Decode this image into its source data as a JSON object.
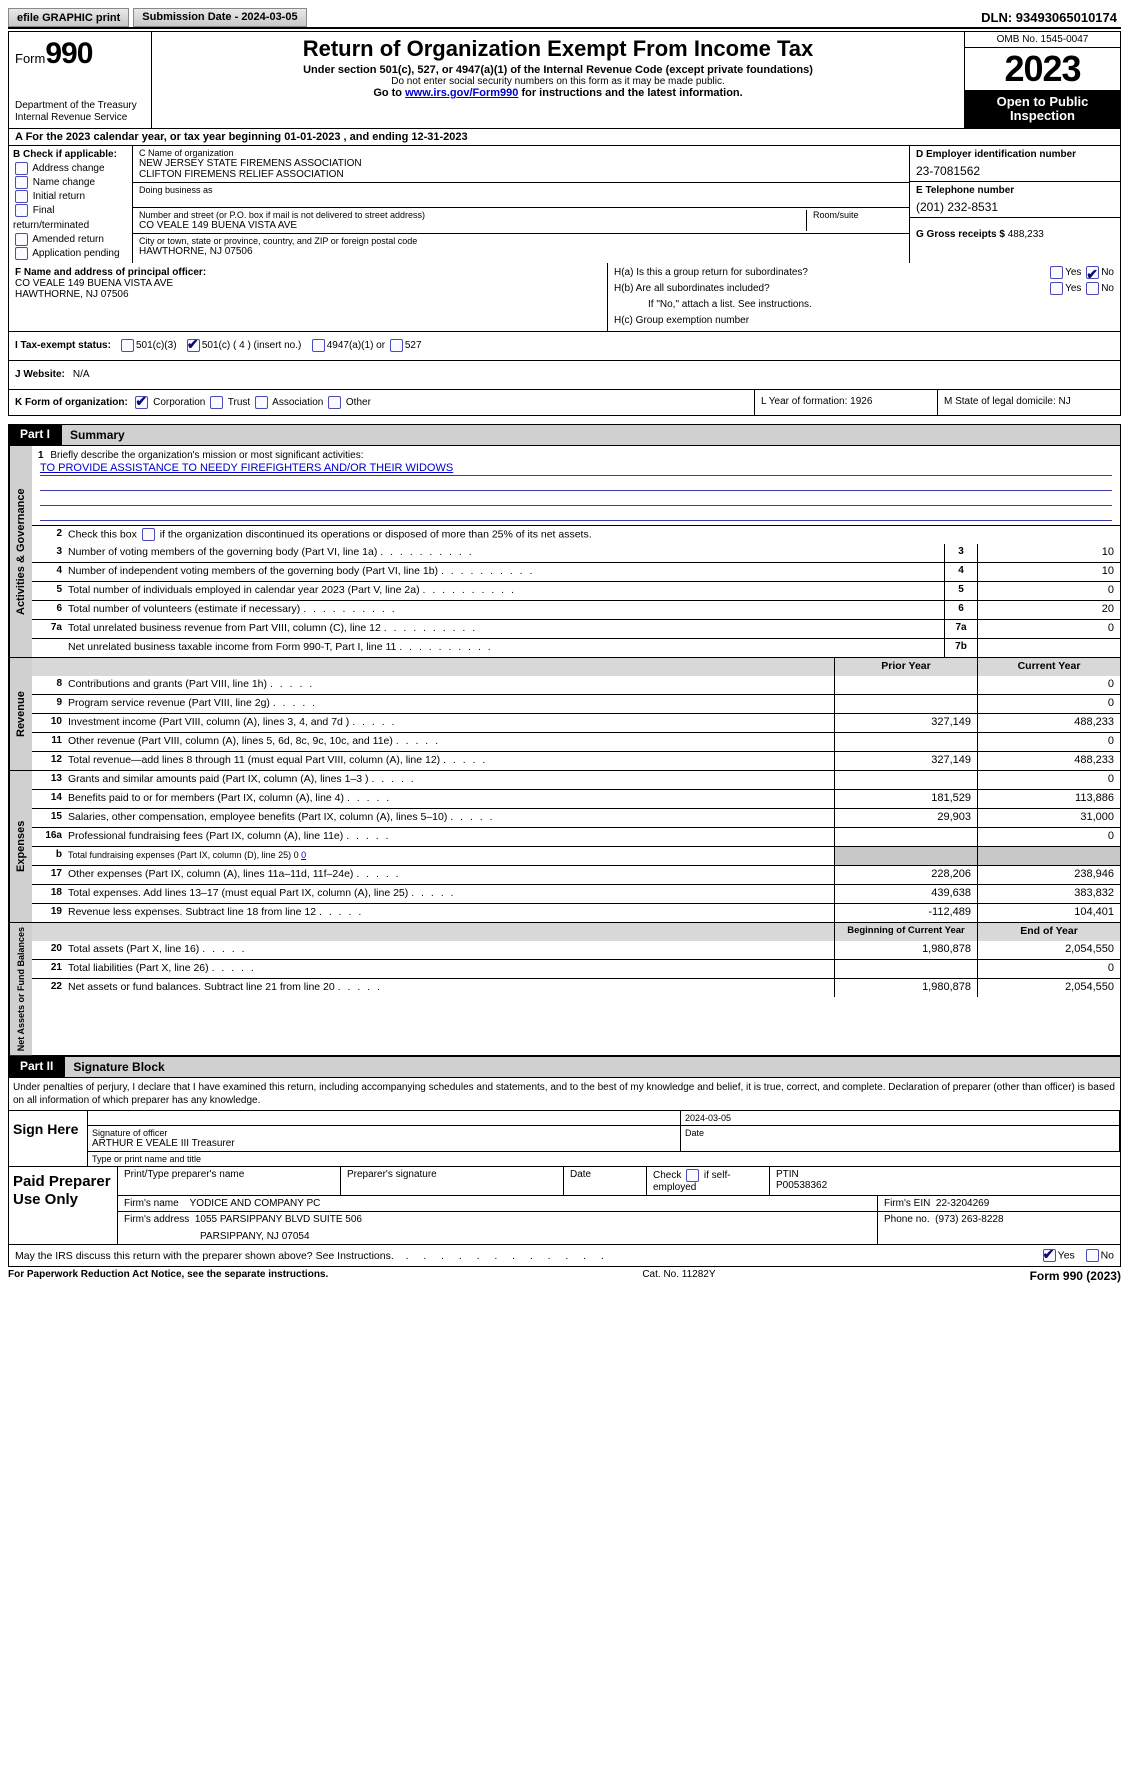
{
  "topbar": {
    "efile": "efile GRAPHIC print",
    "submission": "Submission Date - 2024-03-05",
    "dln": "DLN: 93493065010174"
  },
  "header": {
    "form_label": "Form",
    "form_num": "990",
    "dept": "Department of the Treasury Internal Revenue Service",
    "title": "Return of Organization Exempt From Income Tax",
    "sub1": "Under section 501(c), 527, or 4947(a)(1) of the Internal Revenue Code (except private foundations)",
    "sub2": "Do not enter social security numbers on this form as it may be made public.",
    "sub3_pre": "Go to ",
    "sub3_link": "www.irs.gov/Form990",
    "sub3_post": " for instructions and the latest information.",
    "omb": "OMB No. 1545-0047",
    "year": "2023",
    "open": "Open to Public Inspection"
  },
  "row_a": "A For the 2023 calendar year, or tax year beginning 01-01-2023   , and ending 12-31-2023",
  "section_b": {
    "title": "B Check if applicable:",
    "items": [
      "Address change",
      "Name change",
      "Initial return",
      "Final return/terminated",
      "Amended return",
      "Application pending"
    ]
  },
  "section_c": {
    "name_lbl": "C Name of organization",
    "name1": "NEW JERSEY STATE FIREMENS ASSOCIATION",
    "name2": "CLIFTON FIREMENS RELIEF ASSOCIATION",
    "dba_lbl": "Doing business as",
    "addr_lbl": "Number and street (or P.O. box if mail is not delivered to street address)",
    "addr": "CO VEALE 149 BUENA VISTA AVE",
    "room_lbl": "Room/suite",
    "city_lbl": "City or town, state or province, country, and ZIP or foreign postal code",
    "city": "HAWTHORNE, NJ  07506"
  },
  "section_d": {
    "lbl": "D Employer identification number",
    "val": "23-7081562"
  },
  "section_e": {
    "lbl": "E Telephone number",
    "val": "(201) 232-8531"
  },
  "section_g": {
    "lbl": "G Gross receipts $ ",
    "val": "488,233"
  },
  "section_f": {
    "lbl": "F  Name and address of principal officer:",
    "l1": "",
    "l2": "CO VEALE 149 BUENA VISTA AVE",
    "l3": "HAWTHORNE, NJ  07506"
  },
  "section_h": {
    "ha": "H(a)  Is this a group return for subordinates?",
    "hb": "H(b)  Are all subordinates included?",
    "hb_note": "If \"No,\" attach a list. See instructions.",
    "hc": "H(c)  Group exemption number"
  },
  "row_i": {
    "lbl": "I   Tax-exempt status:",
    "c1": "501(c)(3)",
    "c2": "501(c) ( 4 ) (insert no.)",
    "c3": "4947(a)(1) or",
    "c4": "527"
  },
  "row_j": {
    "lbl": "J   Website:",
    "val": "N/A"
  },
  "row_k": {
    "lbl": "K Form of organization:",
    "opts": [
      "Corporation",
      "Trust",
      "Association",
      "Other"
    ]
  },
  "row_l": "L Year of formation: 1926",
  "row_m": "M State of legal domicile: NJ",
  "part1": {
    "lbl": "Part I",
    "title": "Summary"
  },
  "mission": {
    "q": "Briefly describe the organization's mission or most significant activities:",
    "text": "TO PROVIDE ASSISTANCE TO NEEDY FIREFIGHTERS AND/OR THEIR WIDOWS"
  },
  "line2": "Check this box      if the organization discontinued its operations or disposed of more than 25% of its net assets.",
  "lines_gov": [
    {
      "n": "3",
      "d": "Number of voting members of the governing body (Part VI, line 1a)",
      "box": "3",
      "v": "10"
    },
    {
      "n": "4",
      "d": "Number of independent voting members of the governing body (Part VI, line 1b)",
      "box": "4",
      "v": "10"
    },
    {
      "n": "5",
      "d": "Total number of individuals employed in calendar year 2023 (Part V, line 2a)",
      "box": "5",
      "v": "0"
    },
    {
      "n": "6",
      "d": "Total number of volunteers (estimate if necessary)",
      "box": "6",
      "v": "20"
    },
    {
      "n": "7a",
      "d": "Total unrelated business revenue from Part VIII, column (C), line 12",
      "box": "7a",
      "v": "0"
    },
    {
      "n": "",
      "d": "Net unrelated business taxable income from Form 990-T, Part I, line 11",
      "box": "7b",
      "v": ""
    }
  ],
  "rev_hdr": {
    "py": "Prior Year",
    "cy": "Current Year"
  },
  "lines_rev": [
    {
      "n": "8",
      "d": "Contributions and grants (Part VIII, line 1h)",
      "py": "",
      "cy": "0"
    },
    {
      "n": "9",
      "d": "Program service revenue (Part VIII, line 2g)",
      "py": "",
      "cy": "0"
    },
    {
      "n": "10",
      "d": "Investment income (Part VIII, column (A), lines 3, 4, and 7d )",
      "py": "327,149",
      "cy": "488,233"
    },
    {
      "n": "11",
      "d": "Other revenue (Part VIII, column (A), lines 5, 6d, 8c, 9c, 10c, and 11e)",
      "py": "",
      "cy": "0"
    },
    {
      "n": "12",
      "d": "Total revenue—add lines 8 through 11 (must equal Part VIII, column (A), line 12)",
      "py": "327,149",
      "cy": "488,233"
    }
  ],
  "lines_exp": [
    {
      "n": "13",
      "d": "Grants and similar amounts paid (Part IX, column (A), lines 1–3 )",
      "py": "",
      "cy": "0"
    },
    {
      "n": "14",
      "d": "Benefits paid to or for members (Part IX, column (A), line 4)",
      "py": "181,529",
      "cy": "113,886"
    },
    {
      "n": "15",
      "d": "Salaries, other compensation, employee benefits (Part IX, column (A), lines 5–10)",
      "py": "29,903",
      "cy": "31,000"
    },
    {
      "n": "16a",
      "d": "Professional fundraising fees (Part IX, column (A), line 11e)",
      "py": "",
      "cy": "0"
    },
    {
      "n": "b",
      "d": "Total fundraising expenses (Part IX, column (D), line 25) 0",
      "py": "SHADE",
      "cy": "SHADE"
    },
    {
      "n": "17",
      "d": "Other expenses (Part IX, column (A), lines 11a–11d, 11f–24e)",
      "py": "228,206",
      "cy": "238,946"
    },
    {
      "n": "18",
      "d": "Total expenses. Add lines 13–17 (must equal Part IX, column (A), line 25)",
      "py": "439,638",
      "cy": "383,832"
    },
    {
      "n": "19",
      "d": "Revenue less expenses. Subtract line 18 from line 12",
      "py": "-112,489",
      "cy": "104,401"
    }
  ],
  "net_hdr": {
    "py": "Beginning of Current Year",
    "cy": "End of Year"
  },
  "lines_net": [
    {
      "n": "20",
      "d": "Total assets (Part X, line 16)",
      "py": "1,980,878",
      "cy": "2,054,550"
    },
    {
      "n": "21",
      "d": "Total liabilities (Part X, line 26)",
      "py": "",
      "cy": "0"
    },
    {
      "n": "22",
      "d": "Net assets or fund balances. Subtract line 21 from line 20",
      "py": "1,980,878",
      "cy": "2,054,550"
    }
  ],
  "part2": {
    "lbl": "Part II",
    "title": "Signature Block",
    "text": "Under penalties of perjury, I declare that I have examined this return, including accompanying schedules and statements, and to the best of my knowledge and belief, it is true, correct, and complete. Declaration of preparer (other than officer) is based on all information of which preparer has any knowledge."
  },
  "sign": {
    "lbl": "Sign Here",
    "date": "2024-03-05",
    "sig_lbl": "Signature of officer",
    "name": "ARTHUR E VEALE III Treasurer",
    "type_lbl": "Type or print name and title",
    "date_lbl": "Date"
  },
  "paid": {
    "lbl": "Paid Preparer Use Only",
    "h1": "Print/Type preparer's name",
    "h2": "Preparer's signature",
    "h3": "Date",
    "h4_pre": "Check ",
    "h4_post": " if self-employed",
    "h5": "PTIN",
    "ptin": "P00538362",
    "firm_lbl": "Firm's name",
    "firm": "YODICE AND COMPANY PC",
    "ein_lbl": "Firm's EIN",
    "ein": "22-3204269",
    "addr_lbl": "Firm's address",
    "addr1": "1055 PARSIPPANY BLVD SUITE 506",
    "addr2": "PARSIPPANY, NJ  07054",
    "phone_lbl": "Phone no.",
    "phone": "(973) 263-8228"
  },
  "discuss": "May the IRS discuss this return with the preparer shown above? See Instructions.",
  "footer": {
    "l": "For Paperwork Reduction Act Notice, see the separate instructions.",
    "m": "Cat. No. 11282Y",
    "r": "Form 990 (2023)"
  },
  "tabs": {
    "gov": "Activities & Governance",
    "rev": "Revenue",
    "exp": "Expenses",
    "net": "Net Assets or Fund Balances"
  }
}
